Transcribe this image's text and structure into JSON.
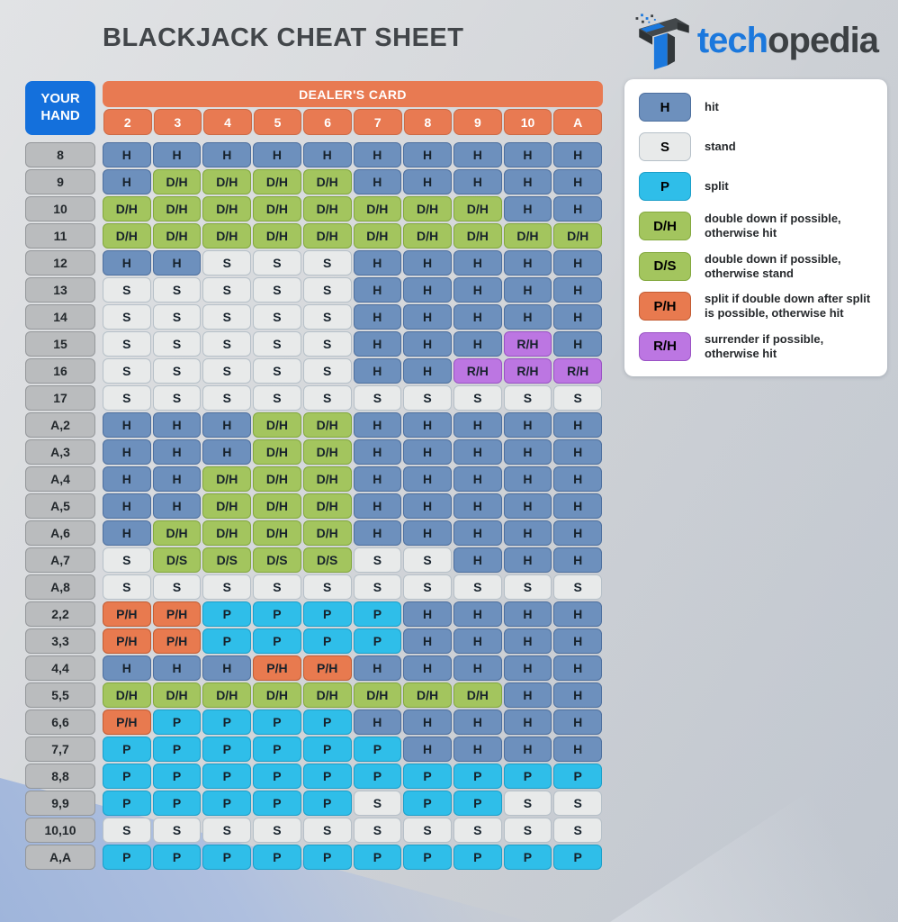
{
  "logo": {
    "part1": "tech",
    "part2": "opedia"
  },
  "chart_data": {
    "type": "table",
    "title": "BLACKJACK CHEAT SHEET",
    "corner_label": "YOUR HAND",
    "dealer_header": "DEALER'S CARD",
    "columns": [
      "2",
      "3",
      "4",
      "5",
      "6",
      "7",
      "8",
      "9",
      "10",
      "A"
    ],
    "rows": [
      {
        "label": "8",
        "cells": [
          "H",
          "H",
          "H",
          "H",
          "H",
          "H",
          "H",
          "H",
          "H",
          "H"
        ]
      },
      {
        "label": "9",
        "cells": [
          "H",
          "D/H",
          "D/H",
          "D/H",
          "D/H",
          "H",
          "H",
          "H",
          "H",
          "H"
        ]
      },
      {
        "label": "10",
        "cells": [
          "D/H",
          "D/H",
          "D/H",
          "D/H",
          "D/H",
          "D/H",
          "D/H",
          "D/H",
          "H",
          "H"
        ]
      },
      {
        "label": "11",
        "cells": [
          "D/H",
          "D/H",
          "D/H",
          "D/H",
          "D/H",
          "D/H",
          "D/H",
          "D/H",
          "D/H",
          "D/H"
        ]
      },
      {
        "label": "12",
        "cells": [
          "H",
          "H",
          "S",
          "S",
          "S",
          "H",
          "H",
          "H",
          "H",
          "H"
        ]
      },
      {
        "label": "13",
        "cells": [
          "S",
          "S",
          "S",
          "S",
          "S",
          "H",
          "H",
          "H",
          "H",
          "H"
        ]
      },
      {
        "label": "14",
        "cells": [
          "S",
          "S",
          "S",
          "S",
          "S",
          "H",
          "H",
          "H",
          "H",
          "H"
        ]
      },
      {
        "label": "15",
        "cells": [
          "S",
          "S",
          "S",
          "S",
          "S",
          "H",
          "H",
          "H",
          "R/H",
          "H"
        ]
      },
      {
        "label": "16",
        "cells": [
          "S",
          "S",
          "S",
          "S",
          "S",
          "H",
          "H",
          "R/H",
          "R/H",
          "R/H"
        ]
      },
      {
        "label": "17",
        "cells": [
          "S",
          "S",
          "S",
          "S",
          "S",
          "S",
          "S",
          "S",
          "S",
          "S"
        ]
      },
      {
        "label": "A,2",
        "cells": [
          "H",
          "H",
          "H",
          "D/H",
          "D/H",
          "H",
          "H",
          "H",
          "H",
          "H"
        ]
      },
      {
        "label": "A,3",
        "cells": [
          "H",
          "H",
          "H",
          "D/H",
          "D/H",
          "H",
          "H",
          "H",
          "H",
          "H"
        ]
      },
      {
        "label": "A,4",
        "cells": [
          "H",
          "H",
          "D/H",
          "D/H",
          "D/H",
          "H",
          "H",
          "H",
          "H",
          "H"
        ]
      },
      {
        "label": "A,5",
        "cells": [
          "H",
          "H",
          "D/H",
          "D/H",
          "D/H",
          "H",
          "H",
          "H",
          "H",
          "H"
        ]
      },
      {
        "label": "A,6",
        "cells": [
          "H",
          "D/H",
          "D/H",
          "D/H",
          "D/H",
          "H",
          "H",
          "H",
          "H",
          "H"
        ]
      },
      {
        "label": "A,7",
        "cells": [
          "S",
          "D/S",
          "D/S",
          "D/S",
          "D/S",
          "S",
          "S",
          "H",
          "H",
          "H"
        ]
      },
      {
        "label": "A,8",
        "cells": [
          "S",
          "S",
          "S",
          "S",
          "S",
          "S",
          "S",
          "S",
          "S",
          "S"
        ]
      },
      {
        "label": "2,2",
        "cells": [
          "P/H",
          "P/H",
          "P",
          "P",
          "P",
          "P",
          "H",
          "H",
          "H",
          "H"
        ]
      },
      {
        "label": "3,3",
        "cells": [
          "P/H",
          "P/H",
          "P",
          "P",
          "P",
          "P",
          "H",
          "H",
          "H",
          "H"
        ]
      },
      {
        "label": "4,4",
        "cells": [
          "H",
          "H",
          "H",
          "P/H",
          "P/H",
          "H",
          "H",
          "H",
          "H",
          "H"
        ]
      },
      {
        "label": "5,5",
        "cells": [
          "D/H",
          "D/H",
          "D/H",
          "D/H",
          "D/H",
          "D/H",
          "D/H",
          "D/H",
          "H",
          "H"
        ]
      },
      {
        "label": "6,6",
        "cells": [
          "P/H",
          "P",
          "P",
          "P",
          "P",
          "H",
          "H",
          "H",
          "H",
          "H"
        ]
      },
      {
        "label": "7,7",
        "cells": [
          "P",
          "P",
          "P",
          "P",
          "P",
          "P",
          "H",
          "H",
          "H",
          "H"
        ]
      },
      {
        "label": "8,8",
        "cells": [
          "P",
          "P",
          "P",
          "P",
          "P",
          "P",
          "P",
          "P",
          "P",
          "P"
        ]
      },
      {
        "label": "9,9",
        "cells": [
          "P",
          "P",
          "P",
          "P",
          "P",
          "S",
          "P",
          "P",
          "S",
          "S"
        ]
      },
      {
        "label": "10,10",
        "cells": [
          "S",
          "S",
          "S",
          "S",
          "S",
          "S",
          "S",
          "S",
          "S",
          "S"
        ]
      },
      {
        "label": "A,A",
        "cells": [
          "P",
          "P",
          "P",
          "P",
          "P",
          "P",
          "P",
          "P",
          "P",
          "P"
        ]
      }
    ]
  },
  "legend": {
    "items": [
      {
        "code": "H",
        "label": "hit"
      },
      {
        "code": "S",
        "label": "stand"
      },
      {
        "code": "P",
        "label": "split"
      },
      {
        "code": "D/H",
        "label": "double down if possible, otherwise hit"
      },
      {
        "code": "D/S",
        "label": "double down if possible, otherwise stand"
      },
      {
        "code": "P/H",
        "label": "split if double down after split is possible, otherwise hit"
      },
      {
        "code": "R/H",
        "label": "surrender if possible, otherwise hit"
      }
    ]
  },
  "colors": {
    "hit": "#6D90BD",
    "stand": "#E8EAEA",
    "split": "#2FBEE9",
    "double": "#A3C55E",
    "split_double": "#E87A4F",
    "surrender": "#BC76E2",
    "dealer": "#E87A52",
    "your_hand": "#1470DC",
    "row_label": "#BABCBE",
    "logo_blue": "#1B78DD",
    "title_dark": "#42464A"
  }
}
